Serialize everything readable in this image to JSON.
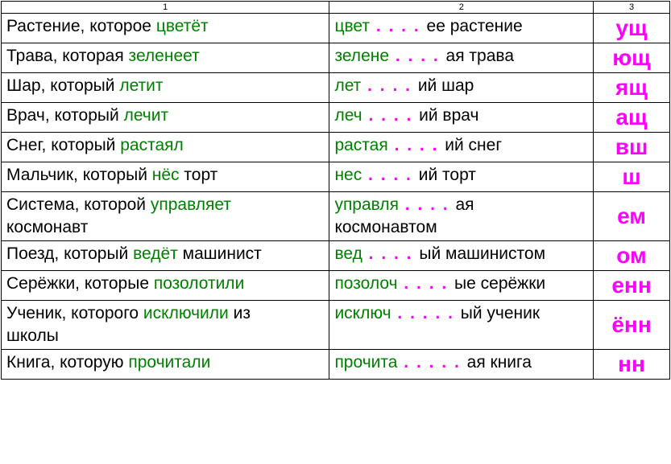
{
  "headers": {
    "c1": "1",
    "c2": "2",
    "c3": "3"
  },
  "colors": {
    "black": "#000000",
    "green": "#008000",
    "magenta": "#ff00ff",
    "border": "#000000",
    "background": "#ffffff"
  },
  "fonts": {
    "body_size": 21,
    "suffix_size": 28,
    "header_size": 11,
    "family": "Arial"
  },
  "rows": [
    {
      "c1_black1": "Растение, которое ",
      "c1_green": "цветёт",
      "c1_black2": "",
      "c2_green": "цвет",
      "c2_dots": " . . . . ",
      "c2_black": "ее  растение",
      "c3": "ущ"
    },
    {
      "c1_black1": "Трава, которая ",
      "c1_green": "зеленеет",
      "c1_black2": "",
      "c2_green": "зелене",
      "c2_dots": " . . . . ",
      "c2_black": "ая  трава",
      "c3": "ющ"
    },
    {
      "c1_black1": "Шар, который ",
      "c1_green": "летит",
      "c1_black2": "",
      "c2_green": "лет",
      "c2_dots": " . . . . ",
      "c2_black": "ий  шар",
      "c3": "ящ"
    },
    {
      "c1_black1": "Врач, который  ",
      "c1_green": "лечит",
      "c1_black2": "",
      "c2_green": "леч",
      "c2_dots": " . . . . ",
      "c2_black": "ий   врач",
      "c3": "ащ"
    },
    {
      "c1_black1": "Снег, который ",
      "c1_green": "растаял",
      "c1_black2": "",
      "c2_green": "растая",
      "c2_dots": " . . . . ",
      "c2_black": "ий   снег",
      "c3": "вш"
    },
    {
      "c1_black1": "Мальчик, который ",
      "c1_green": "нёс",
      "c1_black2": " торт",
      "c2_green": "нес",
      "c2_dots": " . . . . ",
      "c2_black": "ий   торт",
      "c3": "ш"
    },
    {
      "c1_black1": "Система, которой ",
      "c1_green": "управляет",
      "c1_black2": "",
      "c1_line2": "космонавт",
      "c2_green": "управля",
      "c2_dots": " . . . . ",
      "c2_black": "ая",
      "c2_line2": "космонавтом",
      "c3": "ем"
    },
    {
      "c1_black1": "Поезд, который  ",
      "c1_green": "ведёт",
      "c1_black2": "  машинист",
      "c2_green": "вед",
      "c2_dots": " . . . . ",
      "c2_black": "ый   машинистом",
      "c3": "ом"
    },
    {
      "c1_black1": "Серёжки, которые ",
      "c1_green": "позолотили",
      "c1_black2": "",
      "c2_green": "позолоч",
      "c2_dots": " . . . . ",
      "c2_black": "ые  серёжки",
      "c3": "енн"
    },
    {
      "c1_black1": "Ученик, которого ",
      "c1_green": "исключили",
      "c1_black2": " из",
      "c1_line2": "школы",
      "c2_green": "исключ",
      "c2_dots": " . . . . . ",
      "c2_black": "ый  ученик",
      "c3": "ённ"
    },
    {
      "c1_black1": "Книга, которую ",
      "c1_green": "прочитали",
      "c1_black2": "",
      "c2_green": "прочита",
      "c2_dots": " . . . . . ",
      "c2_black": "ая  книга",
      "c3": "нн"
    }
  ]
}
